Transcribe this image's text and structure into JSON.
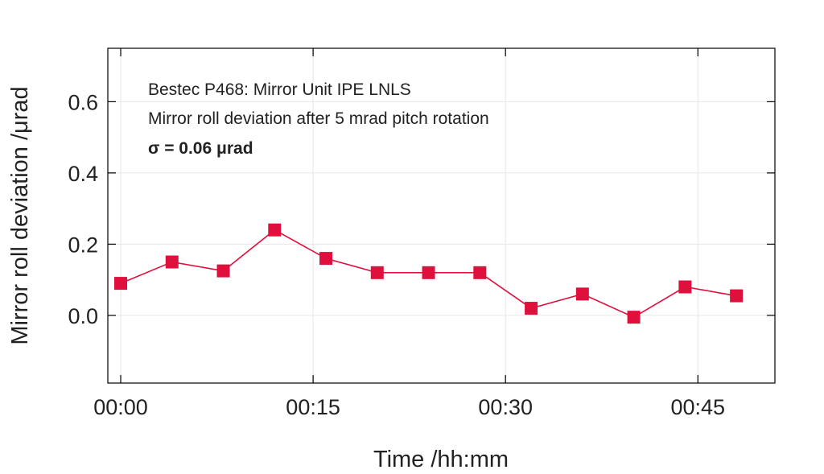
{
  "chart_data": {
    "type": "line",
    "title_lines": [
      "Bestec P468: Mirror Unit IPE LNLS",
      "Mirror roll deviation after 5 mrad pitch rotation",
      "σ = 0.06 μrad"
    ],
    "xlabel": "Time /hh:mm",
    "ylabel": "Mirror roll deviation /μrad",
    "x_tick_labels": [
      "00:00",
      "00:15",
      "00:30",
      "00:45"
    ],
    "y_tick_labels": [
      "0.0",
      "0.2",
      "0.4",
      "0.6"
    ],
    "series": [
      {
        "x": [
          "00:00",
          "00:04",
          "00:08",
          "00:12",
          "00:16",
          "00:20",
          "00:24",
          "00:28",
          "00:32",
          "00:36",
          "00:40",
          "00:44",
          "00:48"
        ],
        "values": [
          0.09,
          0.15,
          0.125,
          0.24,
          0.16,
          0.12,
          0.12,
          0.12,
          0.02,
          0.06,
          -0.005,
          0.08,
          0.055
        ]
      }
    ],
    "xlim": [
      "00:00",
      "00:50"
    ],
    "ylim": [
      -0.19,
      0.75
    ],
    "grid": true,
    "marker": "square",
    "color": "#e0103c"
  }
}
